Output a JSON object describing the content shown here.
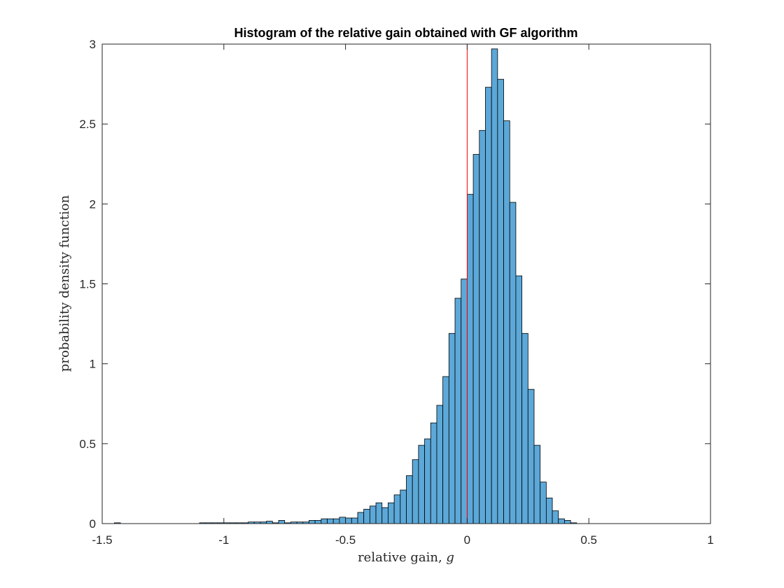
{
  "chart_data": {
    "type": "histogram",
    "title": "Histogram of the relative gain obtained with GF algorithm",
    "xlabel_text": "relative gain, ",
    "xlabel_symbol": "g",
    "ylabel": "probability density function",
    "xlim": [
      -1.5,
      1
    ],
    "ylim": [
      0,
      3
    ],
    "x_ticks": [
      -1.5,
      -1,
      -0.5,
      0,
      0.5,
      1
    ],
    "x_tick_labels": [
      "-1.5",
      "-1",
      "-0.5",
      "0",
      "0.5",
      "1"
    ],
    "y_ticks": [
      0,
      0.5,
      1,
      1.5,
      2,
      2.5,
      3
    ],
    "y_tick_labels": [
      "0",
      "0.5",
      "1",
      "1.5",
      "2",
      "2.5",
      "3"
    ],
    "bin_width": 0.025,
    "bin_edges_start": -1.45,
    "values": [
      0.005,
      0,
      0,
      0,
      0,
      0,
      0,
      0,
      0,
      0,
      0,
      0,
      0,
      0,
      0.005,
      0.005,
      0.005,
      0.005,
      0.005,
      0.005,
      0.005,
      0.005,
      0.01,
      0.01,
      0.01,
      0.015,
      0.005,
      0.02,
      0.005,
      0.01,
      0.01,
      0.01,
      0.02,
      0.02,
      0.03,
      0.03,
      0.03,
      0.04,
      0.035,
      0.035,
      0.07,
      0.09,
      0.11,
      0.13,
      0.1,
      0.13,
      0.18,
      0.21,
      0.3,
      0.4,
      0.49,
      0.53,
      0.63,
      0.74,
      0.92,
      1.19,
      1.41,
      1.53,
      2.06,
      2.31,
      2.46,
      2.73,
      2.97,
      2.78,
      2.52,
      2.01,
      1.55,
      1.19,
      0.84,
      0.49,
      0.26,
      0.16,
      0.08,
      0.03,
      0.02,
      0.005
    ],
    "vertical_line": {
      "x": 0,
      "color": "#ff0000"
    },
    "bar_color": "#5ca8d8",
    "bar_edge_color": "#000000",
    "grid": false
  }
}
